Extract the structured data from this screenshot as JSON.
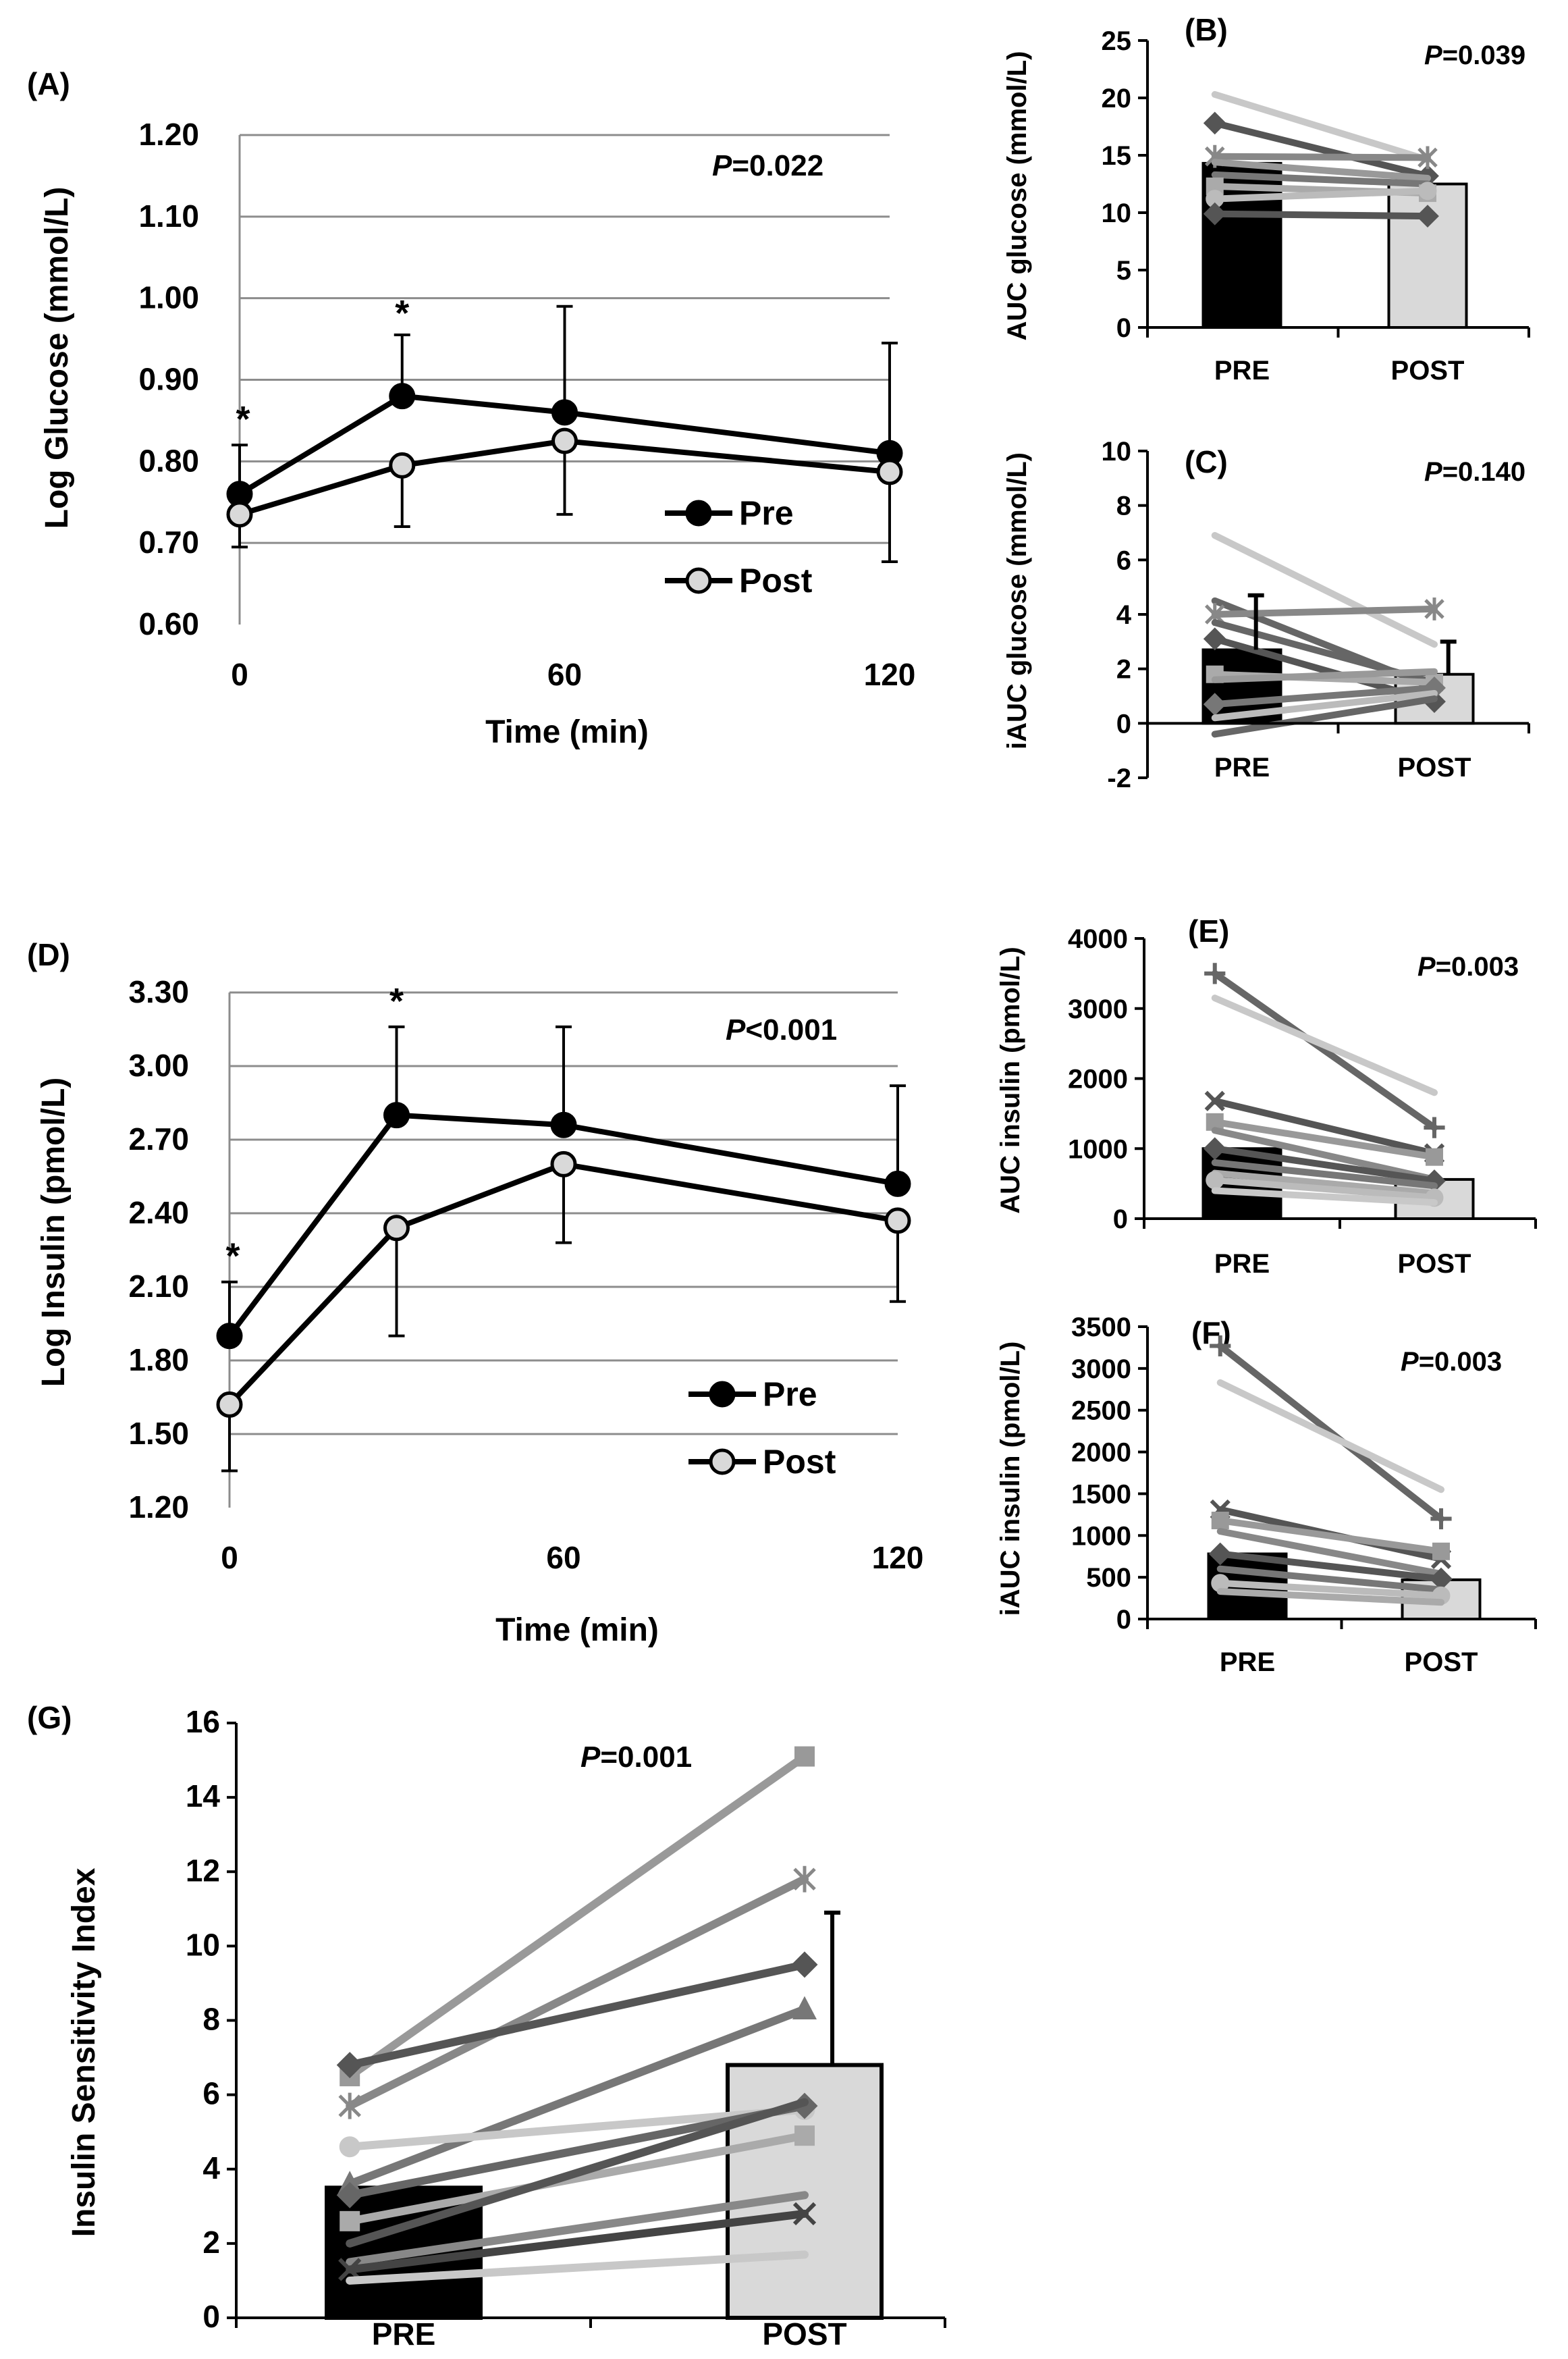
{
  "chart_data": [
    {
      "id": "A",
      "panel_label": "(A)",
      "type": "line",
      "ylabel": "Log Glucose (mmol/L)",
      "xlabel": "Time (min)",
      "x": [
        0,
        30,
        60,
        120
      ],
      "xticks": [
        0,
        60,
        120
      ],
      "xtick_labels": [
        "0",
        "60",
        "120"
      ],
      "xlim": [
        0,
        120
      ],
      "ylim": [
        0.6,
        1.2
      ],
      "yticks": [
        0.6,
        0.7,
        0.8,
        0.9,
        1.0,
        1.1,
        1.2
      ],
      "ytick_labels": [
        "0.60",
        "0.70",
        "0.80",
        "0.90",
        "1.00",
        "1.10",
        "1.20"
      ],
      "grid": true,
      "legend_position": "bottom-right",
      "pvalue_prefix": "P",
      "pvalue_rest": "=0.022",
      "significance_marks": [
        {
          "x": 0,
          "label": "*",
          "above": 0.82
        },
        {
          "x": 30,
          "label": "*",
          "above": 0.95
        }
      ],
      "series": [
        {
          "name": "Pre",
          "values": [
            0.76,
            0.88,
            0.86,
            0.81
          ],
          "errors": [
            0.06,
            0.075,
            0.13,
            0.135
          ],
          "color": "#000000"
        },
        {
          "name": "Post",
          "values": [
            0.735,
            0.795,
            0.825,
            0.787
          ],
          "errors": [
            0.04,
            0.075,
            0.09,
            0.11
          ],
          "color": "#d9d9d9"
        }
      ]
    },
    {
      "id": "B",
      "panel_label": "(B)",
      "type": "bar",
      "ylabel": "AUC glucose (mmol/L)",
      "categories": [
        "PRE",
        "POST"
      ],
      "values": [
        14.3,
        12.5
      ],
      "bar_colors": [
        "#000000",
        "#d9d9d9"
      ],
      "ylim": [
        0,
        25
      ],
      "yticks": [
        0,
        5,
        10,
        15,
        20,
        25
      ],
      "ytick_labels": [
        "0",
        "5",
        "10",
        "15",
        "20",
        "25"
      ],
      "pvalue_prefix": "P",
      "pvalue_rest": "=0.039",
      "individual_lines": [
        {
          "pre": 20.3,
          "post": 14.6,
          "color": "#c8c8c8",
          "marker": "none"
        },
        {
          "pre": 17.8,
          "post": 13.2,
          "color": "#555555",
          "marker": "diamond"
        },
        {
          "pre": 14.9,
          "post": 14.8,
          "color": "#888888",
          "marker": "star"
        },
        {
          "pre": 14.4,
          "post": 13.0,
          "color": "#999999",
          "marker": "none"
        },
        {
          "pre": 13.3,
          "post": 12.5,
          "color": "#777777",
          "marker": "none"
        },
        {
          "pre": 12.3,
          "post": 11.7,
          "color": "#aaaaaa",
          "marker": "square"
        },
        {
          "pre": 11.2,
          "post": 11.9,
          "color": "#bbbbbb",
          "marker": "circle"
        },
        {
          "pre": 9.9,
          "post": 9.7,
          "color": "#555555",
          "marker": "diamond"
        }
      ]
    },
    {
      "id": "C",
      "panel_label": "(C)",
      "type": "bar",
      "ylabel": "iAUC glucose (mmol/L)",
      "categories": [
        "PRE",
        "POST"
      ],
      "values": [
        2.7,
        1.8
      ],
      "errors": [
        2.0,
        1.2
      ],
      "bar_colors": [
        "#000000",
        "#d9d9d9"
      ],
      "ylim": [
        -2,
        10
      ],
      "yticks": [
        -2,
        0,
        2,
        4,
        6,
        8,
        10
      ],
      "ytick_labels": [
        "-2",
        "0",
        "2",
        "4",
        "6",
        "8",
        "10"
      ],
      "pvalue_prefix": "P",
      "pvalue_rest": "=0.140",
      "individual_lines": [
        {
          "pre": 6.9,
          "post": 2.9,
          "color": "#c8c8c8",
          "marker": "none"
        },
        {
          "pre": 4.5,
          "post": 1.3,
          "color": "#666666",
          "marker": "none"
        },
        {
          "pre": 4.0,
          "post": 4.2,
          "color": "#888888",
          "marker": "star"
        },
        {
          "pre": 3.7,
          "post": 1.5,
          "color": "#666666",
          "marker": "none"
        },
        {
          "pre": 3.1,
          "post": 0.8,
          "color": "#555555",
          "marker": "diamond"
        },
        {
          "pre": 1.8,
          "post": 1.5,
          "color": "#aaaaaa",
          "marker": "square"
        },
        {
          "pre": 1.6,
          "post": 1.9,
          "color": "#999999",
          "marker": "none"
        },
        {
          "pre": 0.7,
          "post": 1.3,
          "color": "#777777",
          "marker": "diamond"
        },
        {
          "pre": 0.2,
          "post": 1.1,
          "color": "#bbbbbb",
          "marker": "none"
        },
        {
          "pre": -0.4,
          "post": 0.9,
          "color": "#666666",
          "marker": "none"
        }
      ]
    },
    {
      "id": "D",
      "panel_label": "(D)",
      "type": "line",
      "ylabel": "Log Insulin (pmol/L)",
      "xlabel": "Time (min)",
      "x": [
        0,
        30,
        60,
        120
      ],
      "xticks": [
        0,
        60,
        120
      ],
      "xtick_labels": [
        "0",
        "60",
        "120"
      ],
      "xlim": [
        0,
        120
      ],
      "ylim": [
        1.2,
        3.3
      ],
      "yticks": [
        1.2,
        1.5,
        1.8,
        2.1,
        2.4,
        2.7,
        3.0,
        3.3
      ],
      "ytick_labels": [
        "1.20",
        "1.50",
        "1.80",
        "2.10",
        "2.40",
        "2.70",
        "3.00",
        "3.30"
      ],
      "grid": true,
      "legend_position": "bottom-right",
      "pvalue_prefix": "P",
      "pvalue_rest": "<0.001",
      "significance_marks": [
        {
          "x": 0,
          "label": "*",
          "above": 2.12
        },
        {
          "x": 30,
          "label": "*",
          "above": 3.16
        }
      ],
      "series": [
        {
          "name": "Pre",
          "values": [
            1.9,
            2.8,
            2.76,
            2.52
          ],
          "errors": [
            0.22,
            0.36,
            0.4,
            0.4
          ],
          "color": "#000000"
        },
        {
          "name": "Post",
          "values": [
            1.62,
            2.34,
            2.6,
            2.37
          ],
          "errors": [
            0.27,
            0.44,
            0.32,
            0.33
          ],
          "color": "#d9d9d9"
        }
      ]
    },
    {
      "id": "E",
      "panel_label": "(E)",
      "type": "bar",
      "ylabel": "AUC insulin (pmol/L)",
      "categories": [
        "PRE",
        "POST"
      ],
      "values": [
        1000,
        560
      ],
      "bar_colors": [
        "#000000",
        "#d9d9d9"
      ],
      "ylim": [
        0,
        4000
      ],
      "yticks": [
        0,
        1000,
        2000,
        3000,
        4000
      ],
      "ytick_labels": [
        "0",
        "1000",
        "2000",
        "3000",
        "4000"
      ],
      "pvalue_prefix": "P",
      "pvalue_rest": "=0.003",
      "individual_lines": [
        {
          "pre": 3500,
          "post": 1300,
          "color": "#666666",
          "marker": "plus"
        },
        {
          "pre": 3150,
          "post": 1800,
          "color": "#c8c8c8",
          "marker": "none"
        },
        {
          "pre": 1680,
          "post": 930,
          "color": "#555555",
          "marker": "x"
        },
        {
          "pre": 1380,
          "post": 880,
          "color": "#999999",
          "marker": "square"
        },
        {
          "pre": 1260,
          "post": 560,
          "color": "#888888",
          "marker": "none"
        },
        {
          "pre": 1000,
          "post": 540,
          "color": "#555555",
          "marker": "diamond"
        },
        {
          "pre": 800,
          "post": 470,
          "color": "#777777",
          "marker": "none"
        },
        {
          "pre": 650,
          "post": 360,
          "color": "#aaaaaa",
          "marker": "none"
        },
        {
          "pre": 550,
          "post": 300,
          "color": "#bbbbbb",
          "marker": "circle"
        },
        {
          "pre": 400,
          "post": 230,
          "color": "#c8c8c8",
          "marker": "none"
        }
      ]
    },
    {
      "id": "F",
      "panel_label": "(F)",
      "type": "bar",
      "ylabel": "iAUC insulin (pmol/L)",
      "categories": [
        "PRE",
        "POST"
      ],
      "values": [
        780,
        470
      ],
      "bar_colors": [
        "#000000",
        "#d9d9d9"
      ],
      "ylim": [
        0,
        3500
      ],
      "yticks": [
        0,
        500,
        1000,
        1500,
        2000,
        2500,
        3000,
        3500
      ],
      "ytick_labels": [
        "0",
        "500",
        "1000",
        "1500",
        "2000",
        "2500",
        "3000",
        "3500"
      ],
      "pvalue_prefix": "P",
      "pvalue_rest": "=0.003",
      "individual_lines": [
        {
          "pre": 3270,
          "post": 1200,
          "color": "#666666",
          "marker": "plus"
        },
        {
          "pre": 2830,
          "post": 1550,
          "color": "#c8c8c8",
          "marker": "none"
        },
        {
          "pre": 1310,
          "post": 720,
          "color": "#555555",
          "marker": "x"
        },
        {
          "pre": 1180,
          "post": 810,
          "color": "#999999",
          "marker": "square"
        },
        {
          "pre": 1050,
          "post": 540,
          "color": "#888888",
          "marker": "none"
        },
        {
          "pre": 780,
          "post": 480,
          "color": "#555555",
          "marker": "diamond"
        },
        {
          "pre": 600,
          "post": 350,
          "color": "#777777",
          "marker": "none"
        },
        {
          "pre": 430,
          "post": 280,
          "color": "#bbbbbb",
          "marker": "circle"
        },
        {
          "pre": 330,
          "post": 200,
          "color": "#aaaaaa",
          "marker": "none"
        }
      ]
    },
    {
      "id": "G",
      "panel_label": "(G)",
      "type": "bar",
      "ylabel": "Insulin Sensitivity Index",
      "categories": [
        "PRE",
        "POST"
      ],
      "values": [
        3.5,
        6.8
      ],
      "errors": [
        0,
        4.1
      ],
      "bar_colors": [
        "#000000",
        "#d9d9d9"
      ],
      "ylim": [
        0,
        16
      ],
      "yticks": [
        0,
        2,
        4,
        6,
        8,
        10,
        12,
        14,
        16
      ],
      "ytick_labels": [
        "0",
        "2",
        "4",
        "6",
        "8",
        "10",
        "12",
        "14",
        "16"
      ],
      "pvalue_prefix": "P",
      "pvalue_rest": "=0.001",
      "individual_lines": [
        {
          "pre": 6.5,
          "post": 15.1,
          "color": "#999999",
          "marker": "square"
        },
        {
          "pre": 5.7,
          "post": 11.8,
          "color": "#888888",
          "marker": "star"
        },
        {
          "pre": 6.8,
          "post": 9.5,
          "color": "#555555",
          "marker": "diamond"
        },
        {
          "pre": 3.6,
          "post": 8.3,
          "color": "#777777",
          "marker": "triangle"
        },
        {
          "pre": 4.6,
          "post": 5.6,
          "color": "#c8c8c8",
          "marker": "circle"
        },
        {
          "pre": 3.3,
          "post": 5.7,
          "color": "#666666",
          "marker": "diamond"
        },
        {
          "pre": 2.6,
          "post": 4.9,
          "color": "#aaaaaa",
          "marker": "square"
        },
        {
          "pre": 2.0,
          "post": 5.8,
          "color": "#555555",
          "marker": "none"
        },
        {
          "pre": 1.5,
          "post": 3.3,
          "color": "#888888",
          "marker": "none"
        },
        {
          "pre": 1.3,
          "post": 2.8,
          "color": "#444444",
          "marker": "x"
        },
        {
          "pre": 1.0,
          "post": 1.7,
          "color": "#c8c8c8",
          "marker": "none"
        }
      ]
    }
  ]
}
